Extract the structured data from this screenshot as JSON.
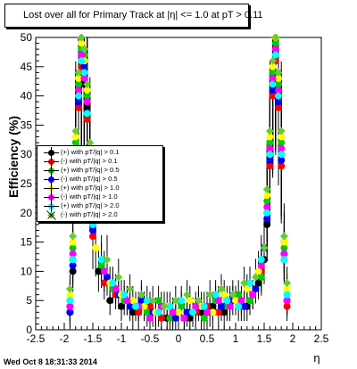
{
  "title": "Lost over all for Primary Track at |η| <= 1.0 at pT > 0.11",
  "timestamp": "Wed Oct  8 18:31:33 2014",
  "chart_data": {
    "type": "scatter",
    "title": "Lost over all for Primary Track at |η| <= 1.0 at pT > 0.11",
    "xlabel": "η",
    "ylabel": "Efficiency (%)",
    "xlim": [
      -2.5,
      2.5
    ],
    "ylim": [
      0,
      50
    ],
    "xticks": [
      "-2.5",
      "-2",
      "-1.5",
      "-1",
      "-0.5",
      "0",
      "0.5",
      "1",
      "1.5",
      "2",
      "2.5"
    ],
    "yticks": [
      "0",
      "5",
      "10",
      "15",
      "20",
      "25",
      "30",
      "35",
      "40",
      "45",
      "50"
    ],
    "grid": false,
    "legend_position": "middle-left",
    "series": [
      {
        "name": "(+) with pT/|q| > 0.1",
        "color": "#000000",
        "marker": "circle",
        "x": [
          -1.9,
          -1.85,
          -1.8,
          -1.75,
          -1.7,
          -1.65,
          -1.6,
          -1.55,
          -1.5,
          -1.4,
          -1.2,
          -1.0,
          -0.8,
          -0.6,
          -0.4,
          -0.2,
          0.0,
          0.2,
          0.4,
          0.6,
          0.8,
          1.0,
          1.2,
          1.4,
          1.5,
          1.55,
          1.6,
          1.65,
          1.7,
          1.75,
          1.8,
          1.85,
          1.9
        ],
        "y": [
          3,
          10,
          30,
          40,
          46,
          42,
          38,
          28,
          18,
          10,
          5,
          4,
          3,
          4,
          3,
          2,
          3,
          2,
          3,
          4,
          3,
          5,
          4,
          8,
          12,
          18,
          30,
          42,
          48,
          40,
          30,
          15,
          5
        ]
      },
      {
        "name": "(-) with pT/|q| > 0.1",
        "color": "#ff0000",
        "marker": "circle",
        "x": [
          -1.9,
          -1.85,
          -1.8,
          -1.75,
          -1.7,
          -1.65,
          -1.6,
          -1.55,
          -1.5,
          -1.3,
          -1.1,
          -0.9,
          -0.7,
          -0.5,
          -0.3,
          -0.1,
          0.1,
          0.3,
          0.5,
          0.7,
          0.9,
          1.1,
          1.3,
          1.45,
          1.55,
          1.6,
          1.65,
          1.7,
          1.75,
          1.8,
          1.85,
          1.9
        ],
        "y": [
          4,
          12,
          28,
          38,
          45,
          44,
          36,
          26,
          16,
          8,
          6,
          5,
          3,
          4,
          2,
          3,
          2,
          3,
          4,
          3,
          5,
          4,
          6,
          10,
          20,
          28,
          40,
          46,
          38,
          28,
          12,
          4
        ]
      },
      {
        "name": "(+) with pT/|q| > 0.5",
        "color": "#00cc00",
        "marker": "circle",
        "x": [
          -1.9,
          -1.85,
          -1.8,
          -1.75,
          -1.7,
          -1.65,
          -1.6,
          -1.55,
          -1.5,
          -1.35,
          -1.15,
          -0.95,
          -0.75,
          -0.55,
          -0.35,
          -0.15,
          0.05,
          0.25,
          0.45,
          0.65,
          0.85,
          1.05,
          1.25,
          1.45,
          1.55,
          1.6,
          1.65,
          1.7,
          1.75,
          1.8,
          1.85,
          1.9
        ],
        "y": [
          5,
          14,
          32,
          42,
          48,
          47,
          40,
          30,
          20,
          11,
          7,
          5,
          4,
          3,
          5,
          2,
          4,
          3,
          2,
          5,
          4,
          6,
          5,
          9,
          22,
          32,
          44,
          49,
          42,
          32,
          14,
          6
        ]
      },
      {
        "name": "(-) with pT/|q| > 0.5",
        "color": "#0000ff",
        "marker": "circle",
        "x": [
          -1.9,
          -1.85,
          -1.8,
          -1.75,
          -1.7,
          -1.65,
          -1.6,
          -1.55,
          -1.5,
          -1.25,
          -1.05,
          -0.85,
          -0.65,
          -0.45,
          -0.25,
          -0.05,
          0.15,
          0.35,
          0.55,
          0.75,
          0.95,
          1.15,
          1.35,
          1.5,
          1.55,
          1.6,
          1.65,
          1.7,
          1.75,
          1.8,
          1.85,
          1.9
        ],
        "y": [
          3,
          11,
          29,
          39,
          47,
          45,
          37,
          27,
          17,
          9,
          6,
          4,
          5,
          3,
          4,
          2,
          3,
          4,
          3,
          4,
          5,
          4,
          7,
          14,
          19,
          29,
          41,
          47,
          39,
          29,
          13,
          5
        ]
      },
      {
        "name": "(+) with pT/|q| > 1.0",
        "color": "#ffff00",
        "marker": "circle",
        "x": [
          -1.9,
          -1.85,
          -1.8,
          -1.75,
          -1.7,
          -1.65,
          -1.6,
          -1.55,
          -1.5,
          -1.45,
          -1.2,
          -1.0,
          -0.8,
          -0.6,
          -0.4,
          -0.2,
          0.0,
          0.2,
          0.4,
          0.6,
          0.8,
          1.0,
          1.2,
          1.4,
          1.55,
          1.6,
          1.65,
          1.7,
          1.75,
          1.8,
          1.85,
          1.9
        ],
        "y": [
          6,
          15,
          33,
          43,
          49,
          46,
          41,
          31,
          21,
          14,
          8,
          6,
          5,
          4,
          3,
          4,
          3,
          5,
          4,
          3,
          6,
          5,
          7,
          10,
          23,
          33,
          45,
          50,
          43,
          33,
          15,
          7
        ]
      },
      {
        "name": "(-) with pT/|q| > 1.0",
        "color": "#ff00ff",
        "marker": "circle",
        "x": [
          -1.9,
          -1.85,
          -1.8,
          -1.75,
          -1.7,
          -1.65,
          -1.6,
          -1.55,
          -1.5,
          -1.3,
          -1.1,
          -0.9,
          -0.7,
          -0.5,
          -0.3,
          -0.1,
          0.1,
          0.3,
          0.5,
          0.7,
          0.9,
          1.1,
          1.3,
          1.45,
          1.55,
          1.6,
          1.65,
          1.7,
          1.75,
          1.8,
          1.85,
          1.9
        ],
        "y": [
          4,
          13,
          31,
          41,
          47,
          43,
          39,
          29,
          19,
          10,
          7,
          5,
          4,
          2,
          4,
          3,
          2,
          4,
          3,
          5,
          4,
          5,
          6,
          11,
          21,
          31,
          43,
          48,
          41,
          31,
          13,
          5
        ]
      },
      {
        "name": "(+) with pT/|q| > 2.0",
        "color": "#00ffff",
        "marker": "circle",
        "x": [
          -1.9,
          -1.85,
          -1.8,
          -1.75,
          -1.7,
          -1.65,
          -1.6,
          -1.55,
          -1.5,
          -1.35,
          -1.15,
          -0.95,
          -0.75,
          -0.55,
          -0.35,
          -0.15,
          0.05,
          0.25,
          0.45,
          0.65,
          0.85,
          1.05,
          1.25,
          1.45,
          1.55,
          1.6,
          1.65,
          1.7,
          1.75,
          1.8,
          1.85,
          1.9
        ],
        "y": [
          5,
          12,
          30,
          40,
          46,
          44,
          37,
          28,
          18,
          12,
          8,
          6,
          4,
          5,
          3,
          4,
          5,
          3,
          4,
          6,
          5,
          4,
          8,
          12,
          20,
          30,
          42,
          47,
          40,
          30,
          12,
          6
        ]
      },
      {
        "name": "(-) with pT/|q| > 2.0",
        "color": "#66cc33",
        "marker": "diamond",
        "x": [
          -1.9,
          -1.85,
          -1.8,
          -1.75,
          -1.7,
          -1.65,
          -1.6,
          -1.55,
          -1.5,
          -1.25,
          -1.05,
          -0.85,
          -0.65,
          -0.45,
          -0.25,
          -0.05,
          0.15,
          0.35,
          0.55,
          0.75,
          0.95,
          1.15,
          1.35,
          1.5,
          1.55,
          1.6,
          1.65,
          1.7,
          1.75,
          1.8,
          1.85,
          1.9
        ],
        "y": [
          7,
          16,
          34,
          44,
          50,
          48,
          42,
          32,
          22,
          12,
          9,
          7,
          6,
          5,
          4,
          5,
          6,
          5,
          6,
          7,
          6,
          8,
          9,
          14,
          24,
          34,
          46,
          50,
          44,
          34,
          16,
          8
        ]
      }
    ]
  }
}
